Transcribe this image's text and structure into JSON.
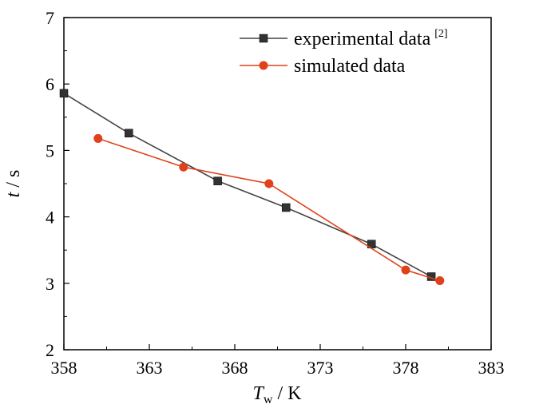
{
  "chart_data": {
    "type": "line",
    "title": "",
    "xlabel": {
      "main": "T",
      "sub": "w",
      "unit": " / K"
    },
    "ylabel": {
      "main": "t",
      "unit": " / s"
    },
    "xlim": [
      358,
      383
    ],
    "ylim": [
      2,
      7
    ],
    "xticks": [
      358,
      363,
      368,
      373,
      378,
      383
    ],
    "yticks": [
      2,
      3,
      4,
      5,
      6,
      7
    ],
    "grid": false,
    "legend_position": "top-right",
    "series": [
      {
        "name": "experimental data",
        "name_superscript": "[2]",
        "color": "#333333",
        "line_color": "#444444",
        "marker": "square",
        "x": [
          358.0,
          361.8,
          367.0,
          371.0,
          376.0,
          379.5
        ],
        "y": [
          5.86,
          5.26,
          4.54,
          4.14,
          3.59,
          3.1
        ]
      },
      {
        "name": "simulated data",
        "color": "#e0401a",
        "line_color": "#e0401a",
        "marker": "circle",
        "x": [
          360.0,
          365.0,
          370.0,
          378.0,
          380.0
        ],
        "y": [
          5.18,
          4.75,
          4.5,
          3.2,
          3.04
        ]
      }
    ]
  }
}
